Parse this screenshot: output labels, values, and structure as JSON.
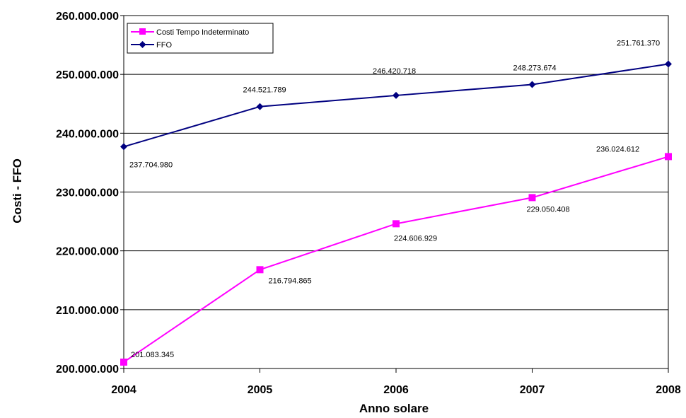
{
  "chart_data": {
    "type": "line",
    "title": "",
    "xlabel": "Anno solare",
    "ylabel": "Costi - FFO",
    "categories": [
      "2004",
      "2005",
      "2006",
      "2007",
      "2008"
    ],
    "yticks": [
      "200.000.000",
      "210.000.000",
      "220.000.000",
      "230.000.000",
      "240.000.000",
      "250.000.000",
      "260.000.000"
    ],
    "ylim": [
      200000000,
      260000000
    ],
    "grid": true,
    "legend_position": "top-left",
    "series": [
      {
        "name": "Costi Tempo Indeterminato",
        "color": "#ff00ff",
        "marker": "square",
        "values": [
          201083345,
          216794865,
          224606929,
          229050408,
          236024612
        ],
        "labels": [
          "201.083.345",
          "216.794.865",
          "224.606.929",
          "229.050.408",
          "236.024.612"
        ]
      },
      {
        "name": "FFO",
        "color": "#000080",
        "marker": "diamond",
        "values": [
          237704980,
          244521789,
          246420718,
          248273674,
          251761370
        ],
        "labels": [
          "237.704.980",
          "244.521.789",
          "246.420.718",
          "248.273.674",
          "251.761.370"
        ]
      }
    ]
  }
}
